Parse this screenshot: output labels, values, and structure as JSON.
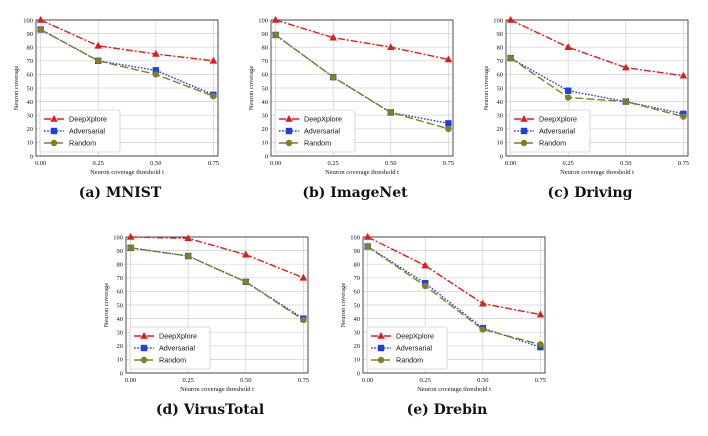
{
  "colors": {
    "deepxplore": "#e01b1b",
    "adversarial": "#1f3fe0",
    "random": "#808020"
  },
  "chart_data": [
    {
      "type": "line",
      "caption": "(a) MNIST",
      "xlabel": "Neuron coverage threshold t",
      "ylabel": "Neuron coverage",
      "x": [
        0.0,
        0.25,
        0.5,
        0.75
      ],
      "xticks": [
        "0.00",
        "0.25",
        "0.50",
        "0.75"
      ],
      "ylim": [
        0,
        100
      ],
      "yticks": [
        "0",
        "10",
        "20",
        "30",
        "40",
        "50",
        "60",
        "70",
        "80",
        "90",
        "100"
      ],
      "grid": true,
      "legend": "bottom-left",
      "series": [
        {
          "name": "DeepXplore",
          "values": [
            100,
            81,
            75,
            70
          ]
        },
        {
          "name": "Adversarial",
          "values": [
            93,
            70,
            63,
            45
          ]
        },
        {
          "name": "Random",
          "values": [
            93,
            70,
            60,
            44
          ]
        }
      ]
    },
    {
      "type": "line",
      "caption": "(b) ImageNet",
      "xlabel": "Neuron coverage threshold t",
      "ylabel": "Neuron coverage",
      "x": [
        0.0,
        0.25,
        0.5,
        0.75
      ],
      "xticks": [
        "0.00",
        "0.25",
        "0.50",
        "0.75"
      ],
      "ylim": [
        0,
        100
      ],
      "yticks": [
        "0",
        "10",
        "20",
        "30",
        "40",
        "50",
        "60",
        "70",
        "80",
        "90",
        "100"
      ],
      "grid": true,
      "legend": "bottom-left",
      "series": [
        {
          "name": "DeepXplore",
          "values": [
            100,
            87,
            80,
            71
          ]
        },
        {
          "name": "Adversarial",
          "values": [
            89,
            58,
            32,
            24
          ]
        },
        {
          "name": "Random",
          "values": [
            89,
            58,
            32,
            20
          ]
        }
      ]
    },
    {
      "type": "line",
      "caption": "(c) Driving",
      "xlabel": "Neuron coverage threshold t",
      "ylabel": "Neuron coverage",
      "x": [
        0.0,
        0.25,
        0.5,
        0.75
      ],
      "xticks": [
        "0.00",
        "0.25",
        "0.50",
        "0.75"
      ],
      "ylim": [
        0,
        100
      ],
      "yticks": [
        "0",
        "10",
        "20",
        "30",
        "40",
        "50",
        "60",
        "70",
        "80",
        "90",
        "100"
      ],
      "grid": true,
      "legend": "bottom-left",
      "series": [
        {
          "name": "DeepXplore",
          "values": [
            100,
            80,
            65,
            59
          ]
        },
        {
          "name": "Adversarial",
          "values": [
            72,
            48,
            40,
            31
          ]
        },
        {
          "name": "Random",
          "values": [
            72,
            43,
            40,
            29
          ]
        }
      ]
    },
    {
      "type": "line",
      "caption": "(d) VirusTotal",
      "xlabel": "Neuron coverage threshold t",
      "ylabel": "Neuron coverage",
      "x": [
        0.0,
        0.25,
        0.5,
        0.75
      ],
      "xticks": [
        "0.00",
        "0.25",
        "0.50",
        "0.75"
      ],
      "ylim": [
        0,
        100
      ],
      "yticks": [
        "0",
        "10",
        "20",
        "30",
        "40",
        "50",
        "60",
        "70",
        "80",
        "90",
        "100"
      ],
      "grid": true,
      "legend": "bottom-left",
      "series": [
        {
          "name": "DeepXplore",
          "values": [
            100,
            99,
            87,
            70
          ]
        },
        {
          "name": "Adversarial",
          "values": [
            92,
            86,
            67,
            40
          ]
        },
        {
          "name": "Random",
          "values": [
            92,
            86,
            67,
            39
          ]
        }
      ]
    },
    {
      "type": "line",
      "caption": "(e) Drebin",
      "xlabel": "Neuron coverage threshold t",
      "ylabel": "Neuron coverage",
      "x": [
        0.0,
        0.25,
        0.5,
        0.75
      ],
      "xticks": [
        "0.00",
        "0.25",
        "0.50",
        "0.75"
      ],
      "ylim": [
        0,
        100
      ],
      "yticks": [
        "0",
        "10",
        "20",
        "30",
        "40",
        "50",
        "60",
        "70",
        "80",
        "90",
        "100"
      ],
      "grid": true,
      "legend": "bottom-left",
      "series": [
        {
          "name": "DeepXplore",
          "values": [
            100,
            79,
            51,
            43
          ]
        },
        {
          "name": "Adversarial",
          "values": [
            93,
            66,
            33,
            19
          ]
        },
        {
          "name": "Random",
          "values": [
            93,
            64,
            32,
            21
          ]
        }
      ]
    }
  ]
}
